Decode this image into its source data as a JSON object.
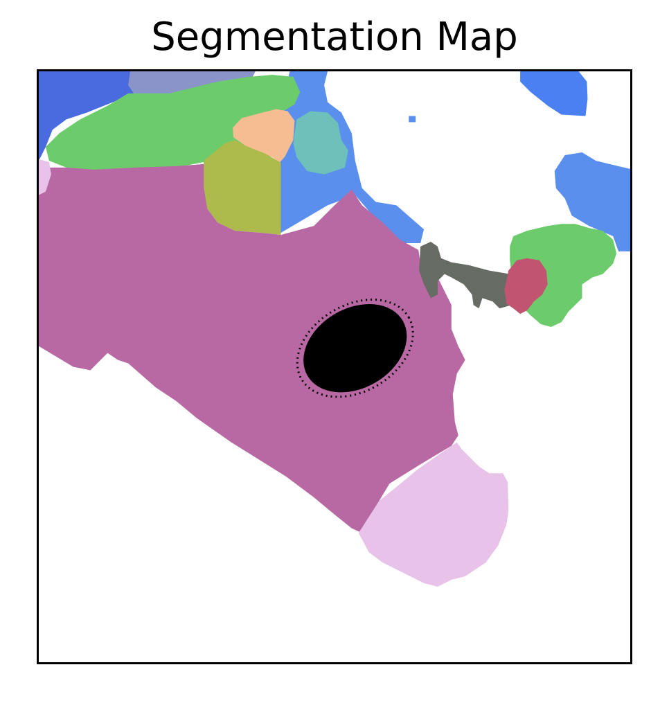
{
  "title": "Segmentation Map",
  "colors": {
    "background": "#ffffff",
    "royal_blue": "#4a6ae0",
    "slate_blue": "#8a94c8",
    "cornflower_blue": "#5a8fee",
    "bright_blue": "#4a80f2",
    "green": "#6ccc6c",
    "peach": "#f5bd91",
    "teal": "#6ec1bb",
    "olive": "#acbb4b",
    "magenta": "#b869a3",
    "light_pink": "#e9c2e9",
    "dark_gray": "#666b63",
    "crimson": "#c15470",
    "black": "#000000"
  }
}
